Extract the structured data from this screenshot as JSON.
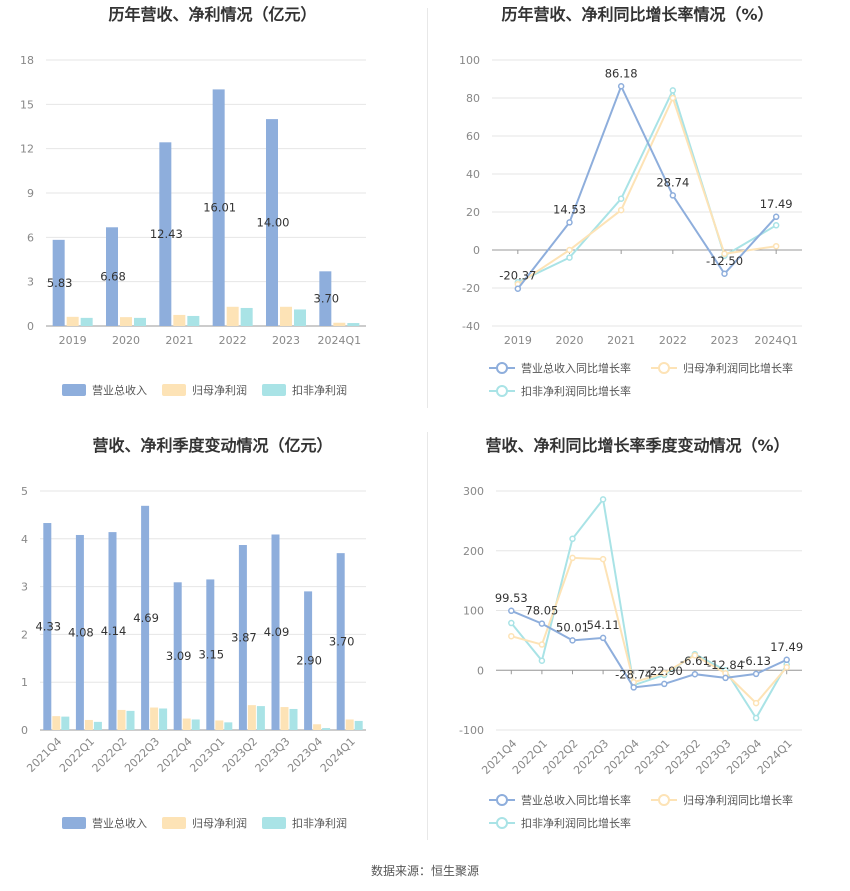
{
  "colors": {
    "revenue": "#8eaedc",
    "parent_profit": "#fde3b6",
    "deducted_profit": "#a9e3e6",
    "grid": "#e6e6e6",
    "axis_text": "#888888",
    "title": "#333333"
  },
  "source_text": "数据来源：恒生聚源",
  "chart_data": [
    {
      "type": "bar",
      "title": "历年营收、净利情况（亿元）",
      "categories": [
        "2019",
        "2020",
        "2021",
        "2022",
        "2023",
        "2024Q1"
      ],
      "series": [
        {
          "name": "营业总收入",
          "values": [
            5.83,
            6.68,
            12.43,
            16.01,
            14.0,
            3.7
          ]
        },
        {
          "name": "归母净利润",
          "values": [
            0.62,
            0.6,
            0.75,
            1.3,
            1.3,
            0.22
          ]
        },
        {
          "name": "扣非净利润",
          "values": [
            0.55,
            0.55,
            0.68,
            1.22,
            1.12,
            0.2
          ]
        }
      ],
      "data_labels": [
        "5.83",
        "6.68",
        "12.43",
        "16.01",
        "14.00",
        "3.70"
      ],
      "yticks": [
        "0",
        "3",
        "6",
        "9",
        "12",
        "15",
        "18"
      ],
      "ylim": [
        0,
        18
      ],
      "legend_position": "bottom",
      "grid": true
    },
    {
      "type": "line",
      "title": "历年营收、净利同比增长率情况（%）",
      "categories": [
        "2019",
        "2020",
        "2021",
        "2022",
        "2023",
        "2024Q1"
      ],
      "series": [
        {
          "name": "营业总收入同比增长率",
          "values": [
            -20.37,
            14.53,
            86.18,
            28.74,
            -12.5,
            17.49
          ]
        },
        {
          "name": "归母净利润同比增长率",
          "values": [
            -18,
            0,
            21,
            80,
            -2,
            2
          ]
        },
        {
          "name": "扣非净利润同比增长率",
          "values": [
            -17,
            -4,
            27,
            84,
            -3,
            13
          ]
        }
      ],
      "data_labels": [
        "-20.37",
        "14.53",
        "86.18",
        "28.74",
        "-12.50",
        "17.49"
      ],
      "yticks": [
        "-40",
        "-20",
        "0",
        "20",
        "40",
        "60",
        "80",
        "100"
      ],
      "ylim": [
        -40,
        100
      ],
      "legend_position": "bottom",
      "grid": true
    },
    {
      "type": "bar",
      "title": "营收、净利季度变动情况（亿元）",
      "categories": [
        "2021Q4",
        "2022Q1",
        "2022Q2",
        "2022Q3",
        "2022Q4",
        "2023Q1",
        "2023Q2",
        "2023Q3",
        "2023Q4",
        "2024Q1"
      ],
      "series": [
        {
          "name": "营业总收入",
          "values": [
            4.33,
            4.08,
            4.14,
            4.69,
            3.09,
            3.15,
            3.87,
            4.09,
            2.9,
            3.7
          ]
        },
        {
          "name": "归母净利润",
          "values": [
            0.29,
            0.21,
            0.42,
            0.47,
            0.24,
            0.2,
            0.52,
            0.48,
            0.12,
            0.22
          ]
        },
        {
          "name": "扣非净利润",
          "values": [
            0.28,
            0.17,
            0.4,
            0.45,
            0.22,
            0.16,
            0.5,
            0.44,
            0.04,
            0.19
          ]
        }
      ],
      "data_labels": [
        "4.33",
        "4.08",
        "4.14",
        "4.69",
        "3.09",
        "3.15",
        "3.87",
        "4.09",
        "2.90",
        "3.70"
      ],
      "yticks": [
        "0",
        "1",
        "2",
        "3",
        "4",
        "5"
      ],
      "ylim": [
        0,
        5
      ],
      "legend_position": "bottom",
      "grid": true
    },
    {
      "type": "line",
      "title": "营收、净利同比增长率季度变动情况（%）",
      "categories": [
        "2021Q4",
        "2022Q1",
        "2022Q2",
        "2022Q3",
        "2022Q4",
        "2023Q1",
        "2023Q2",
        "2023Q3",
        "2023Q4",
        "2024Q1"
      ],
      "series": [
        {
          "name": "营业总收入同比增长率",
          "values": [
            99.53,
            78.05,
            50.01,
            54.11,
            -28.74,
            -22.9,
            -6.61,
            -12.84,
            -6.13,
            17.49
          ]
        },
        {
          "name": "归母净利润同比增长率",
          "values": [
            57,
            43,
            188,
            186,
            -20,
            -5,
            25,
            -5,
            -55,
            5
          ]
        },
        {
          "name": "扣非净利润同比增长率",
          "values": [
            79,
            16,
            220,
            286,
            -25,
            -8,
            27,
            0,
            -80,
            10
          ]
        }
      ],
      "data_labels": [
        "99.53",
        "78.05",
        "50.01",
        "54.11",
        "-28.74",
        "-22.90",
        "-6.61",
        "-12.84",
        "-6.13",
        "17.49"
      ],
      "yticks": [
        "-100",
        "0",
        "100",
        "200",
        "300"
      ],
      "ylim": [
        -100,
        300
      ],
      "legend_position": "bottom",
      "grid": true
    }
  ]
}
